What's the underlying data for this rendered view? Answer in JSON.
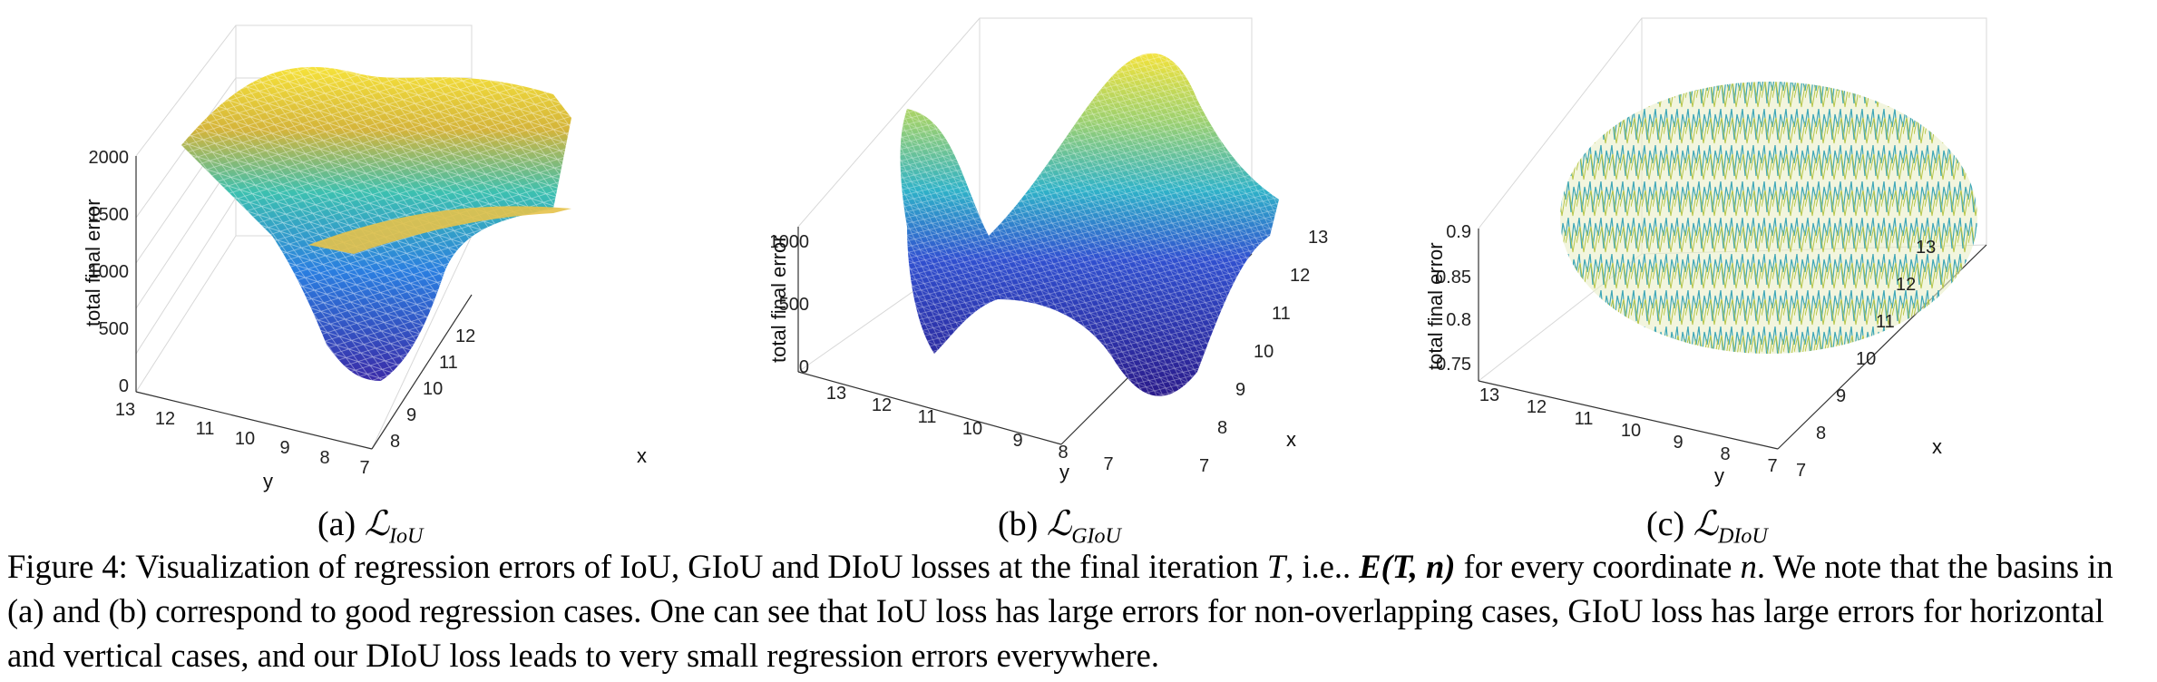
{
  "figure_number": "Figure 4:",
  "caption_parts": [
    "Visualization of regression errors of IoU, GIoU and DIoU losses at the final iteration ",
    "T",
    ", i.e.. ",
    "E(T, n)",
    " for every coordinate ",
    "n",
    ". We note that the basins in (a) and (b) correspond to good regression cases. One can see that IoU loss has large errors for non-overlapping cases, GIoU loss has large errors for horizontal and vertical cases, and our DIoU loss leads to very small regression errors everywhere."
  ],
  "panels": [
    {
      "label": "(a)",
      "loss_symbol": "ℒ",
      "loss_subscript": "IoU",
      "z_label": "total final error",
      "y_label": "y",
      "x_label": "x",
      "z_ticks": [
        "0",
        "500",
        "1000",
        "1500",
        "2000"
      ],
      "y_ticks": [
        "13",
        "12",
        "11",
        "10",
        "9",
        "8",
        "7"
      ],
      "x_ticks": [
        "8",
        "9",
        "10",
        "11",
        "12"
      ]
    },
    {
      "label": "(b)",
      "loss_symbol": "ℒ",
      "loss_subscript": "GIoU",
      "z_label": "total final error",
      "y_label": "y",
      "x_label": "x",
      "z_ticks": [
        "0",
        "500",
        "1000"
      ],
      "y_ticks": [
        "13",
        "12",
        "11",
        "10",
        "9",
        "8",
        "7"
      ],
      "x_ticks": [
        "7",
        "8",
        "9",
        "10",
        "11",
        "12",
        "13"
      ]
    },
    {
      "label": "(c)",
      "loss_symbol": "ℒ",
      "loss_subscript": "DIoU",
      "z_label": "total final error",
      "y_label": "y",
      "x_label": "x",
      "z_ticks": [
        "0.75",
        "0.8",
        "0.85",
        "0.9"
      ],
      "y_ticks": [
        "13",
        "12",
        "11",
        "10",
        "9",
        "8",
        "7"
      ],
      "x_ticks": [
        "7",
        "8",
        "9",
        "10",
        "11",
        "12",
        "13"
      ]
    }
  ]
}
